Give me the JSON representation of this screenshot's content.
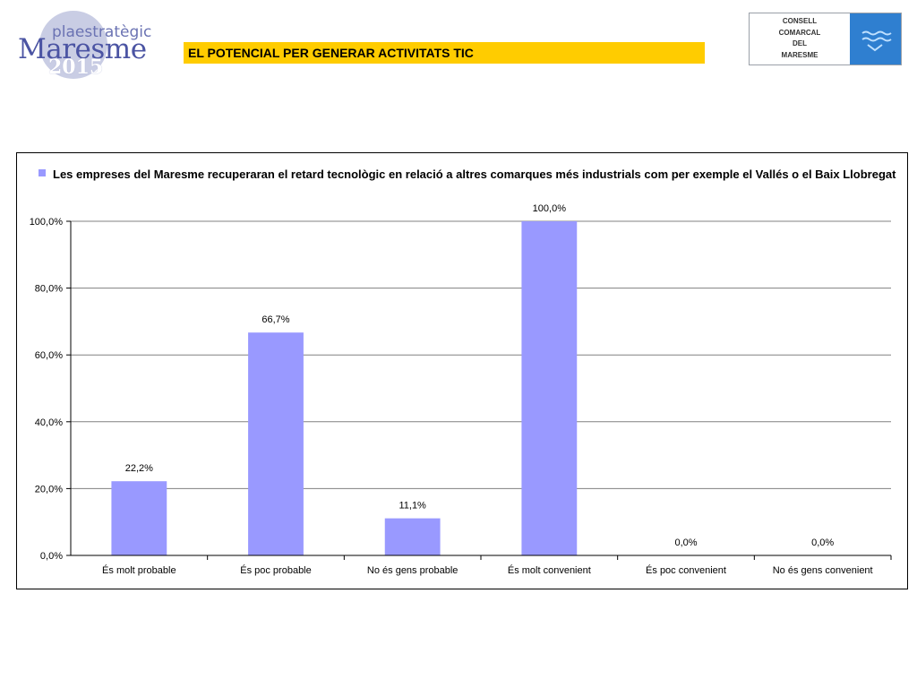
{
  "logo_left": {
    "line1": "plaestratègic",
    "line2": "Maresme",
    "line3": "2015"
  },
  "header": {
    "title": "EL POTENCIAL PER GENERAR ACTIVITATS TIC"
  },
  "logo_right": {
    "lines": [
      "CONSELL",
      "COMARCAL",
      "DEL",
      "MARESME"
    ],
    "accent": "#2f7fd0"
  },
  "chart_data": {
    "type": "bar",
    "categories": [
      "És molt probable",
      "És poc probable",
      "No és gens probable",
      "És molt convenient",
      "És poc convenient",
      "No és gens convenient"
    ],
    "series": [
      {
        "name": "Les empreses del Maresme recuperaran el retard tecnològic en relació a altres comarques més industrials com per exemple el Vallés o el Baix Llobregat",
        "values": [
          22.2,
          66.7,
          11.1,
          100.0,
          0.0,
          0.0
        ],
        "color": "#9999ff"
      }
    ],
    "data_labels": [
      "22,2%",
      "66,7%",
      "11,1%",
      "100,0%",
      "0,0%",
      "0,0%"
    ],
    "y_ticks": [
      "0,0%",
      "20,0%",
      "40,0%",
      "60,0%",
      "80,0%",
      "100,0%"
    ],
    "ylim": [
      0,
      100
    ],
    "grid": true,
    "legend_position": "top",
    "title": "",
    "xlabel": "",
    "ylabel": ""
  }
}
